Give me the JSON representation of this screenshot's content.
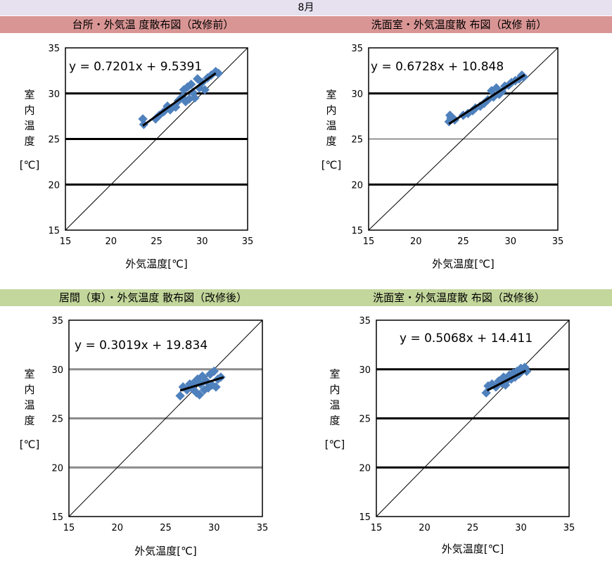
{
  "month_title": "8月",
  "colors": {
    "month_bar": "#e6e0ef",
    "header_before": "#d99594",
    "header_after": "#c3d69b",
    "point": "#4f81bd",
    "trend": "#000000"
  },
  "chart_data": [
    {
      "type": "scatter",
      "title": "台所・外気温 度散布図（改修前）",
      "xlabel": "外気温度[℃]",
      "ylabel": [
        "室",
        "内",
        "温",
        "度",
        "[℃]"
      ],
      "equation": "y = 0.7201x + 9.5391",
      "slope": 0.7201,
      "intercept": 9.5391,
      "xlim": [
        15,
        35
      ],
      "ylim": [
        15,
        35
      ],
      "xticks": [
        "15",
        "20",
        "25",
        "30",
        "35"
      ],
      "yticks": [
        "15",
        "20",
        "25",
        "30",
        "35"
      ],
      "trend_range": [
        23.5,
        31.5
      ],
      "points": [
        [
          23.5,
          27.2
        ],
        [
          23.6,
          26.6
        ],
        [
          24.9,
          27.2
        ],
        [
          25.3,
          27.6
        ],
        [
          25.8,
          28.0
        ],
        [
          26.2,
          28.6
        ],
        [
          26.5,
          28.2
        ],
        [
          27.1,
          28.5
        ],
        [
          27.4,
          29.2
        ],
        [
          27.8,
          29.6
        ],
        [
          28.0,
          30.4
        ],
        [
          28.2,
          29.1
        ],
        [
          28.4,
          30.7
        ],
        [
          28.6,
          29.4
        ],
        [
          28.8,
          31.0
        ],
        [
          29.0,
          30.1
        ],
        [
          29.2,
          29.5
        ],
        [
          29.5,
          31.6
        ],
        [
          29.7,
          30.6
        ],
        [
          30.0,
          31.2
        ],
        [
          30.3,
          30.4
        ],
        [
          30.6,
          31.7
        ],
        [
          31.0,
          32.0
        ],
        [
          31.5,
          32.4
        ],
        [
          31.8,
          32.2
        ]
      ]
    },
    {
      "type": "scatter",
      "title": "洗面室・外気温度散 布図（改修 前）",
      "xlabel": "外気温度[℃]",
      "ylabel": [
        "室",
        "内",
        "温",
        "度",
        "[℃]"
      ],
      "equation": "y = 0.6728x + 10.848",
      "slope": 0.6728,
      "intercept": 10.848,
      "xlim": [
        15,
        35
      ],
      "ylim": [
        15,
        35
      ],
      "xticks": [
        "15",
        "20",
        "25",
        "30",
        "35"
      ],
      "yticks": [
        "15",
        "20",
        "25",
        "30",
        "35"
      ],
      "trend_range": [
        23.5,
        31.5
      ],
      "points": [
        [
          23.5,
          26.9
        ],
        [
          23.6,
          27.6
        ],
        [
          23.7,
          27.3
        ],
        [
          24.1,
          27.1
        ],
        [
          25.0,
          27.6
        ],
        [
          25.5,
          27.8
        ],
        [
          26.0,
          28.1
        ],
        [
          26.3,
          28.4
        ],
        [
          26.8,
          28.6
        ],
        [
          27.2,
          28.9
        ],
        [
          27.6,
          29.3
        ],
        [
          28.0,
          30.3
        ],
        [
          28.2,
          29.6
        ],
        [
          28.5,
          30.6
        ],
        [
          28.8,
          29.9
        ],
        [
          29.1,
          30.2
        ],
        [
          29.4,
          30.8
        ],
        [
          29.8,
          30.9
        ],
        [
          30.1,
          31.2
        ],
        [
          30.5,
          31.4
        ],
        [
          30.9,
          31.6
        ],
        [
          31.2,
          32.0
        ],
        [
          31.4,
          31.8
        ]
      ]
    },
    {
      "type": "scatter",
      "title": "居間（東）・外気温度 散布図（改修後）",
      "xlabel": "外気温度[℃]",
      "ylabel": [
        "室",
        "内",
        "温",
        "度",
        "[℃]"
      ],
      "equation": "y = 0.3019x + 19.834",
      "slope": 0.3019,
      "intercept": 19.834,
      "xlim": [
        15,
        35
      ],
      "ylim": [
        15,
        35
      ],
      "xticks": [
        "15",
        "20",
        "25",
        "30",
        "35"
      ],
      "yticks": [
        "15",
        "20",
        "25",
        "30",
        "35"
      ],
      "trend_range": [
        26.5,
        31
      ],
      "points": [
        [
          26.5,
          27.3
        ],
        [
          26.8,
          28.2
        ],
        [
          27.2,
          27.9
        ],
        [
          27.5,
          28.5
        ],
        [
          27.8,
          28.0
        ],
        [
          28.0,
          28.7
        ],
        [
          28.2,
          27.6
        ],
        [
          28.3,
          29.0
        ],
        [
          28.5,
          27.4
        ],
        [
          28.6,
          28.5
        ],
        [
          28.8,
          29.3
        ],
        [
          29.0,
          27.9
        ],
        [
          29.2,
          28.8
        ],
        [
          29.4,
          28.1
        ],
        [
          29.6,
          29.5
        ],
        [
          29.8,
          28.4
        ],
        [
          30.0,
          29.8
        ],
        [
          30.2,
          28.2
        ],
        [
          30.4,
          29.0
        ],
        [
          30.7,
          29.2
        ]
      ]
    },
    {
      "type": "scatter",
      "title": "洗面室・外気温度散 布図（改修後）",
      "xlabel": "外気温度[℃]",
      "ylabel": [
        "室",
        "内",
        "温",
        "度",
        "[℃]"
      ],
      "equation": "y = 0.5068x + 14.411",
      "slope": 0.5068,
      "intercept": 14.411,
      "xlim": [
        15,
        35
      ],
      "ylim": [
        15,
        35
      ],
      "xticks": [
        "15",
        "20",
        "25",
        "30",
        "35"
      ],
      "yticks": [
        "15",
        "20",
        "25",
        "30",
        "35"
      ],
      "trend_range": [
        26.5,
        30.5
      ],
      "points": [
        [
          26.4,
          27.6
        ],
        [
          26.6,
          28.3
        ],
        [
          27.0,
          28.5
        ],
        [
          27.4,
          28.2
        ],
        [
          27.7,
          28.8
        ],
        [
          28.0,
          28.6
        ],
        [
          28.2,
          29.2
        ],
        [
          28.4,
          28.4
        ],
        [
          28.6,
          28.9
        ],
        [
          28.8,
          29.4
        ],
        [
          29.0,
          29.0
        ],
        [
          29.2,
          29.6
        ],
        [
          29.4,
          29.2
        ],
        [
          29.6,
          29.8
        ],
        [
          29.8,
          29.5
        ],
        [
          30.0,
          30.1
        ],
        [
          30.2,
          29.9
        ],
        [
          30.4,
          30.2
        ],
        [
          30.6,
          29.8
        ]
      ]
    }
  ]
}
